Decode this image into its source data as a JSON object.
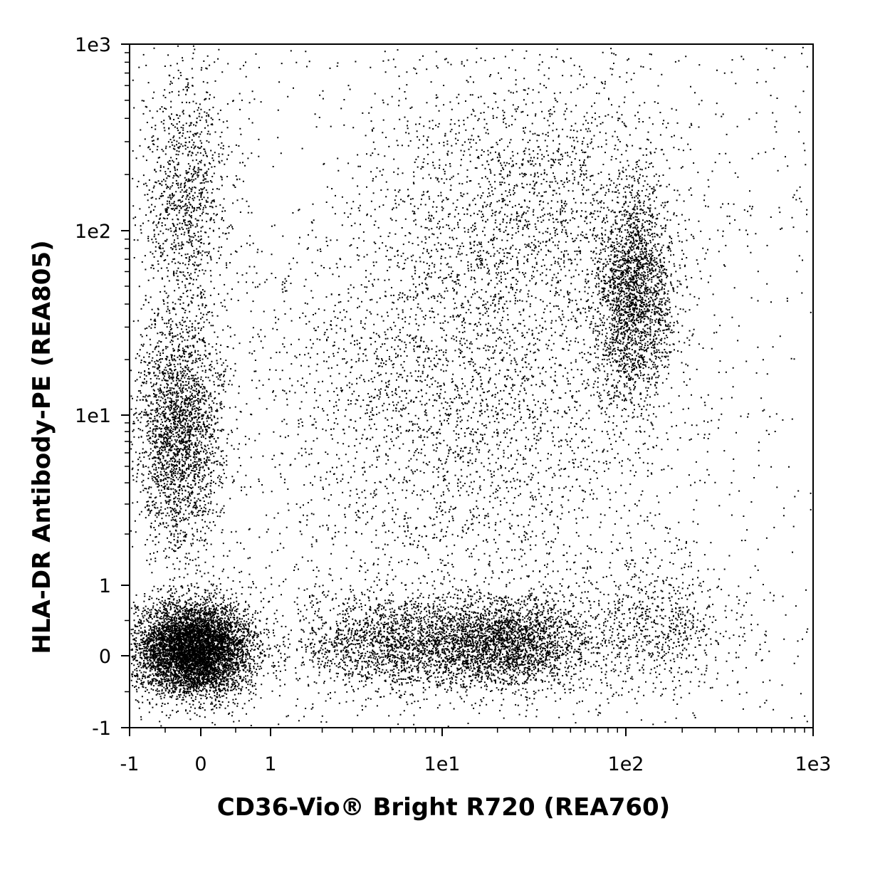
{
  "chart_data": {
    "type": "scatter",
    "scale": "biexponential",
    "xlabel": "CD36-Vio® Bright R720 (REA760)",
    "ylabel": "HLA-DR Antibody-PE (REA805)",
    "xlim": [
      -1,
      1000
    ],
    "ylim": [
      -1,
      1000
    ],
    "x_tick_labels": [
      "-1",
      "0",
      "1",
      "1e1",
      "1e2",
      "1e3"
    ],
    "y_tick_labels": [
      "-1",
      "0",
      "1",
      "1e1",
      "1e2",
      "1e3"
    ],
    "x_tick_values": [
      -1,
      0,
      1,
      10,
      100,
      1000
    ],
    "y_tick_values": [
      -1,
      0,
      1,
      10,
      100,
      1000
    ],
    "grid": false,
    "legend": "none",
    "colors": {
      "points": "#000000",
      "axes": "#000000",
      "background": "#ffffff"
    },
    "populations": [
      {
        "x_center": -0.1,
        "y_center": 0.1,
        "fraction": 0.3
      },
      {
        "x_center": -0.3,
        "y_center": 8,
        "fraction": 0.11
      },
      {
        "x_center": -0.2,
        "y_center": 150,
        "fraction": 0.05
      },
      {
        "x_center": 22,
        "y_center": 0.2,
        "fraction": 0.12
      },
      {
        "x_center": 110,
        "y_center": 45,
        "fraction": 0.1
      },
      {
        "x_center": 30,
        "y_center": 150,
        "fraction": 0.07
      },
      {
        "x_center": 5,
        "y_center": 0.2,
        "fraction": 0.08
      },
      {
        "x_center": 15,
        "y_center": 8,
        "fraction": 0.1
      },
      {
        "x_center": 150,
        "y_center": 0.4,
        "fraction": 0.03
      },
      {
        "x_center": 8,
        "y_center": 20,
        "fraction": 0.04
      }
    ]
  }
}
